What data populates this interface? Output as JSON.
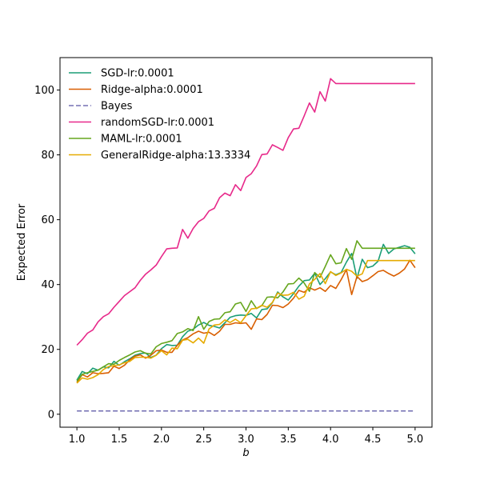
{
  "chart_data": {
    "type": "line",
    "xlabel": "b",
    "ylabel": "Expected Error",
    "xlim": [
      0.8,
      5.2
    ],
    "ylim": [
      -4,
      110
    ],
    "xticks": [
      "1.0",
      "1.5",
      "2.0",
      "2.5",
      "3.0",
      "3.5",
      "4.0",
      "4.5",
      "5.0"
    ],
    "yticks": [
      "0",
      "20",
      "40",
      "60",
      "80",
      "100"
    ],
    "grid": false,
    "legend_position": "top-left",
    "x": [
      1.0,
      1.0625,
      1.125,
      1.1875,
      1.25,
      1.3125,
      1.375,
      1.4375,
      1.5,
      1.5625,
      1.625,
      1.6875,
      1.75,
      1.8125,
      1.875,
      1.9375,
      2.0,
      2.0625,
      2.125,
      2.1875,
      2.25,
      2.3125,
      2.375,
      2.4375,
      2.5,
      2.5625,
      2.625,
      2.6875,
      2.75,
      2.8125,
      2.875,
      2.9375,
      3.0,
      3.0625,
      3.125,
      3.1875,
      3.25,
      3.3125,
      3.375,
      3.4375,
      3.5,
      3.5625,
      3.625,
      3.6875,
      3.75,
      3.8125,
      3.875,
      3.9375,
      4.0,
      4.0625,
      4.125,
      4.1875,
      4.25,
      4.3125,
      4.375,
      4.4375,
      4.5,
      4.5625,
      4.625,
      4.6875,
      4.75,
      4.8125,
      4.875,
      4.9375,
      5.0
    ],
    "series": [
      {
        "name": "SGD-lr:0.0001",
        "color": "#1b9e77",
        "dash": "solid",
        "values": [
          10.5,
          13.2,
          12.5,
          14.2,
          13.6,
          14.6,
          14.3,
          16.3,
          15.1,
          16.2,
          17.1,
          18.2,
          18.7,
          18.9,
          17.5,
          18.2,
          20.2,
          21.5,
          21.2,
          21.3,
          23.9,
          25.6,
          26.2,
          27.5,
          28.3,
          27.4,
          27.1,
          26.6,
          28.2,
          29.9,
          30.4,
          30.6,
          30.5,
          31.1,
          29.7,
          32.3,
          32.5,
          34.4,
          37.7,
          36.2,
          35.2,
          37.2,
          39.5,
          41.2,
          41.4,
          43.5,
          40.0,
          41.8,
          43.9,
          43.0,
          43.7,
          46.9,
          49.6,
          41.9,
          47.8,
          45.2,
          45.7,
          47.2,
          52.4,
          49.6,
          51.0,
          51.5,
          52.0,
          51.5,
          49.5
        ]
      },
      {
        "name": "Ridge-alpha:0.0001",
        "color": "#d95f02",
        "dash": "solid",
        "values": [
          9.8,
          12.2,
          11.5,
          12.8,
          12.5,
          12.6,
          12.8,
          14.8,
          14.1,
          15.1,
          16.8,
          17.9,
          18.3,
          17.3,
          18.2,
          19.6,
          19.8,
          19.1,
          19.1,
          21.3,
          22.9,
          23.6,
          24.8,
          25.6,
          25.0,
          25.3,
          24.3,
          25.6,
          27.7,
          27.7,
          28.2,
          28.0,
          28.2,
          26.2,
          29.4,
          29.2,
          30.8,
          33.6,
          33.5,
          32.9,
          34.0,
          35.8,
          38.2,
          37.6,
          39.0,
          38.3,
          39.0,
          37.9,
          39.7,
          38.8,
          41.5,
          44.6,
          36.9,
          42.5,
          40.9,
          41.5,
          42.7,
          44.0,
          44.4,
          43.4,
          42.6,
          43.5,
          44.8,
          47.5,
          45.2
        ]
      },
      {
        "name": "Bayes",
        "color": "#7570b3",
        "dash": "dashed",
        "values": [
          1.0,
          1.0,
          1.0,
          1.0,
          1.0,
          1.0,
          1.0,
          1.0,
          1.0,
          1.0,
          1.0,
          1.0,
          1.0,
          1.0,
          1.0,
          1.0,
          1.0,
          1.0,
          1.0,
          1.0,
          1.0,
          1.0,
          1.0,
          1.0,
          1.0,
          1.0,
          1.0,
          1.0,
          1.0,
          1.0,
          1.0,
          1.0,
          1.0,
          1.0,
          1.0,
          1.0,
          1.0,
          1.0,
          1.0,
          1.0,
          1.0,
          1.0,
          1.0,
          1.0,
          1.0,
          1.0,
          1.0,
          1.0,
          1.0,
          1.0,
          1.0,
          1.0,
          1.0,
          1.0,
          1.0,
          1.0,
          1.0,
          1.0,
          1.0,
          1.0,
          1.0,
          1.0,
          1.0,
          1.0,
          1.0
        ]
      },
      {
        "name": "randomSGD-lr:0.0001",
        "color": "#e7298a",
        "dash": "solid",
        "values": [
          21.3,
          23.0,
          25.0,
          26.0,
          28.5,
          30.1,
          31.0,
          33.0,
          34.8,
          36.6,
          37.8,
          39.0,
          41.3,
          43.2,
          44.5,
          46.0,
          48.6,
          51.0,
          51.2,
          51.3,
          57.0,
          54.3,
          57.3,
          59.4,
          60.4,
          62.7,
          63.5,
          66.8,
          68.2,
          67.4,
          70.8,
          69.0,
          73.0,
          74.2,
          76.6,
          80.1,
          80.3,
          83.1,
          82.3,
          81.4,
          85.3,
          88.0,
          88.2,
          92.0,
          96.0,
          93.2,
          99.5,
          96.6,
          103.5,
          102.0,
          102.0,
          102.0,
          102.0,
          102.0,
          102.0,
          102.0,
          102.0,
          102.0,
          102.0,
          102.0,
          102.0,
          102.0,
          102.0,
          102.0,
          102.0
        ]
      },
      {
        "name": "MAML-lr:0.0001",
        "color": "#66a61e",
        "dash": "solid",
        "values": [
          10.2,
          12.3,
          12.8,
          13.2,
          13.6,
          14.6,
          15.6,
          15.4,
          16.6,
          17.5,
          18.3,
          19.2,
          19.6,
          18.8,
          18.6,
          20.8,
          21.8,
          22.2,
          22.7,
          24.9,
          25.4,
          26.4,
          25.8,
          30.1,
          26.2,
          28.6,
          29.3,
          29.4,
          31.3,
          31.6,
          34.0,
          34.5,
          31.7,
          35.0,
          32.6,
          33.5,
          36.1,
          36.2,
          35.9,
          37.7,
          40.2,
          40.3,
          42.0,
          40.5,
          37.9,
          43.7,
          42.2,
          45.6,
          49.2,
          46.4,
          46.7,
          51.1,
          47.8,
          53.5,
          51.2,
          51.2,
          51.2,
          51.2,
          51.2,
          51.2,
          51.2,
          51.2,
          51.2,
          51.2,
          51.2
        ]
      },
      {
        "name": "GeneralRidge-alpha:13.3334",
        "color": "#e6ab02",
        "dash": "solid",
        "values": [
          9.6,
          11.2,
          10.8,
          11.3,
          12.2,
          13.8,
          14.7,
          15.0,
          15.2,
          15.9,
          16.3,
          17.5,
          17.6,
          17.6,
          17.3,
          18.2,
          19.6,
          18.3,
          20.4,
          20.2,
          22.8,
          23.1,
          22.0,
          23.5,
          21.9,
          26.3,
          27.5,
          27.7,
          29.1,
          28.3,
          29.3,
          28.2,
          30.4,
          32.5,
          32.7,
          33.6,
          33.0,
          34.5,
          37.4,
          36.7,
          36.8,
          37.6,
          35.5,
          36.4,
          40.2,
          41.6,
          43.4,
          40.3,
          44.0,
          42.8,
          43.6,
          44.7,
          44.1,
          42.6,
          43.3,
          47.4,
          47.4,
          47.4,
          47.4,
          47.4,
          47.4,
          47.4,
          47.4,
          47.4,
          47.4
        ]
      }
    ]
  }
}
